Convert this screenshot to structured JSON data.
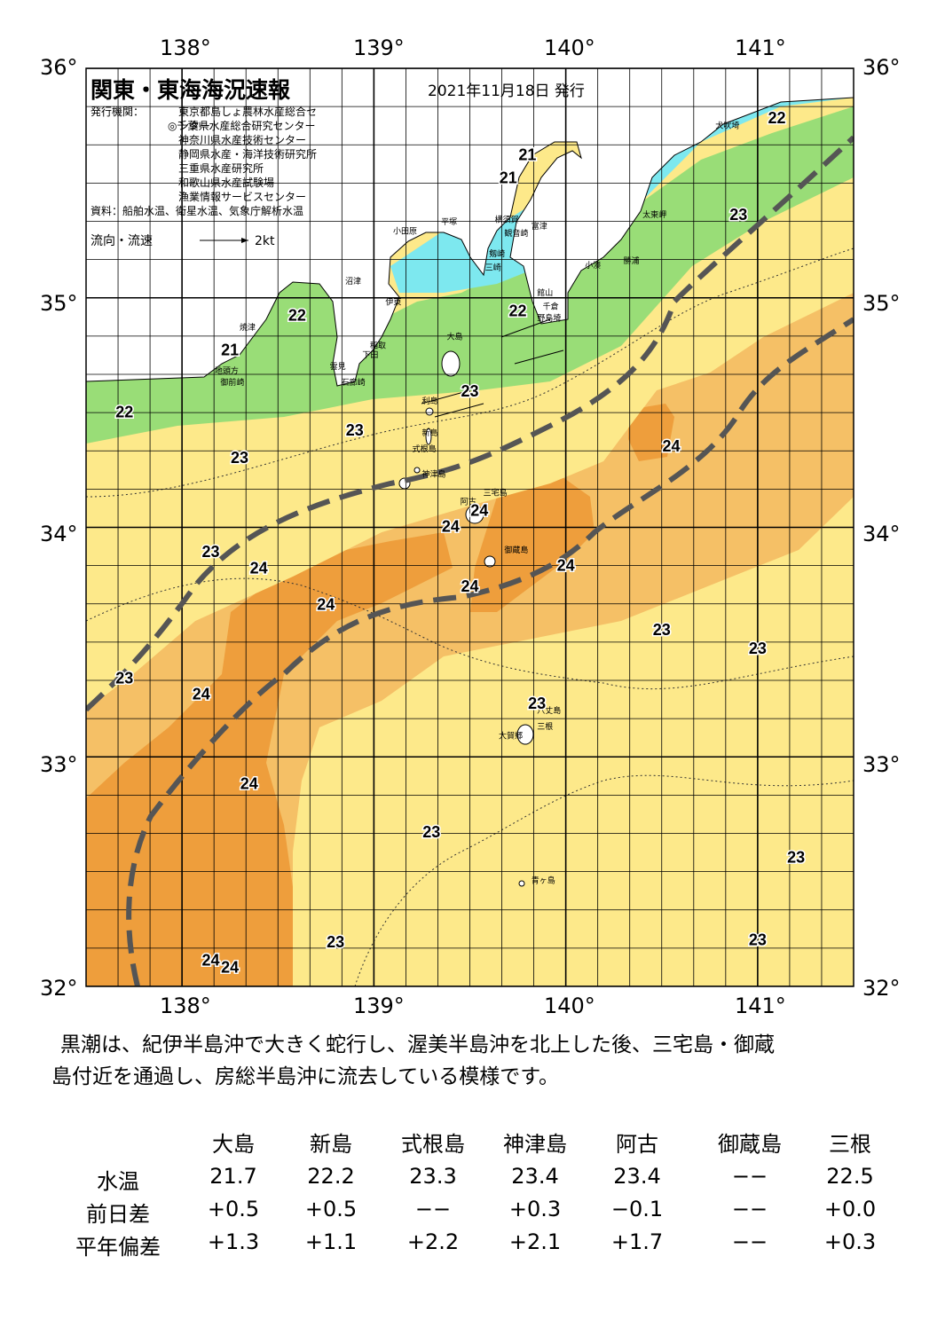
{
  "title": "関東・東海海況速報",
  "issue_date": "2021年11月18日 発行",
  "issuer_heading": "発行機関：",
  "issuers": [
    "東京都島しょ農林水産総合センター",
    "◎千葉県水産総合研究センター",
    "神奈川県水産技術センター",
    "静岡県水産・海洋技術研究所",
    "三重県水産研究所",
    "和歌山県水産試験場",
    "漁業情報サービスセンター"
  ],
  "source_note": "資料：船舶水温、衛星水温、気象庁解析水温",
  "flow_legend": {
    "label": "流向・流速",
    "scale": "2kt"
  },
  "axes": {
    "lon_labels": [
      "138°",
      "139°",
      "140°",
      "141°"
    ],
    "lat_labels": [
      "36°",
      "35°",
      "34°",
      "33°",
      "32°"
    ],
    "lon_range": [
      137.5,
      141.5
    ],
    "lat_range": [
      32,
      36
    ]
  },
  "temperature_labels": [
    {
      "text": "21",
      "lon": 139.8,
      "lat": 35.6
    },
    {
      "text": "21",
      "lon": 139.7,
      "lat": 35.5
    },
    {
      "text": "22",
      "lon": 141.1,
      "lat": 35.76
    },
    {
      "text": "23",
      "lon": 140.9,
      "lat": 35.34
    },
    {
      "text": "22",
      "lon": 138.6,
      "lat": 34.9
    },
    {
      "text": "21",
      "lon": 138.25,
      "lat": 34.75
    },
    {
      "text": "22",
      "lon": 139.75,
      "lat": 34.92
    },
    {
      "text": "23",
      "lon": 139.5,
      "lat": 34.57
    },
    {
      "text": "22",
      "lon": 137.7,
      "lat": 34.48
    },
    {
      "text": "23",
      "lon": 138.3,
      "lat": 34.28
    },
    {
      "text": "23",
      "lon": 138.9,
      "lat": 34.4
    },
    {
      "text": "24",
      "lon": 140.55,
      "lat": 34.33
    },
    {
      "text": "24",
      "lon": 139.55,
      "lat": 34.05
    },
    {
      "text": "24",
      "lon": 139.4,
      "lat": 33.98
    },
    {
      "text": "23",
      "lon": 138.15,
      "lat": 33.87
    },
    {
      "text": "24",
      "lon": 138.4,
      "lat": 33.8
    },
    {
      "text": "24",
      "lon": 140.0,
      "lat": 33.81
    },
    {
      "text": "24",
      "lon": 139.5,
      "lat": 33.72
    },
    {
      "text": "24",
      "lon": 138.75,
      "lat": 33.64
    },
    {
      "text": "23",
      "lon": 140.5,
      "lat": 33.53
    },
    {
      "text": "23",
      "lon": 141.0,
      "lat": 33.45
    },
    {
      "text": "23",
      "lon": 137.7,
      "lat": 33.32
    },
    {
      "text": "24",
      "lon": 138.1,
      "lat": 33.25
    },
    {
      "text": "23",
      "lon": 139.85,
      "lat": 33.21
    },
    {
      "text": "24",
      "lon": 138.35,
      "lat": 32.86
    },
    {
      "text": "23",
      "lon": 139.3,
      "lat": 32.65
    },
    {
      "text": "23",
      "lon": 141.2,
      "lat": 32.54
    },
    {
      "text": "23",
      "lon": 138.8,
      "lat": 32.17
    },
    {
      "text": "23",
      "lon": 141.0,
      "lat": 32.18
    },
    {
      "text": "24",
      "lon": 138.15,
      "lat": 32.09
    },
    {
      "text": "24",
      "lon": 138.25,
      "lat": 32.06
    }
  ],
  "place_labels": [
    {
      "text": "犬吠埼",
      "lon": 140.78,
      "lat": 35.74
    },
    {
      "text": "太東岬",
      "lon": 140.4,
      "lat": 35.35
    },
    {
      "text": "勝浦",
      "lon": 140.3,
      "lat": 35.15
    },
    {
      "text": "小湊",
      "lon": 140.1,
      "lat": 35.13
    },
    {
      "text": "富津",
      "lon": 139.82,
      "lat": 35.3
    },
    {
      "text": "館山",
      "lon": 139.85,
      "lat": 35.01
    },
    {
      "text": "千倉",
      "lon": 139.88,
      "lat": 34.95
    },
    {
      "text": "野島埼",
      "lon": 139.85,
      "lat": 34.9
    },
    {
      "text": "横須賀",
      "lon": 139.63,
      "lat": 35.33
    },
    {
      "text": "観音崎",
      "lon": 139.68,
      "lat": 35.27
    },
    {
      "text": "剱崎",
      "lon": 139.6,
      "lat": 35.18
    },
    {
      "text": "三崎",
      "lon": 139.58,
      "lat": 35.12
    },
    {
      "text": "平塚",
      "lon": 139.35,
      "lat": 35.32
    },
    {
      "text": "小田原",
      "lon": 139.1,
      "lat": 35.28
    },
    {
      "text": "伊東",
      "lon": 139.06,
      "lat": 34.97
    },
    {
      "text": "稲取",
      "lon": 138.98,
      "lat": 34.78
    },
    {
      "text": "下田",
      "lon": 138.94,
      "lat": 34.74
    },
    {
      "text": "石廊崎",
      "lon": 138.83,
      "lat": 34.62
    },
    {
      "text": "雲見",
      "lon": 138.77,
      "lat": 34.69
    },
    {
      "text": "沼津",
      "lon": 138.85,
      "lat": 35.06
    },
    {
      "text": "焼津",
      "lon": 138.3,
      "lat": 34.86
    },
    {
      "text": "地頭方",
      "lon": 138.17,
      "lat": 34.67
    },
    {
      "text": "御前崎",
      "lon": 138.2,
      "lat": 34.62
    },
    {
      "text": "大島",
      "lon": 139.38,
      "lat": 34.82
    },
    {
      "text": "利島",
      "lon": 139.25,
      "lat": 34.54
    },
    {
      "text": "新島",
      "lon": 139.25,
      "lat": 34.4
    },
    {
      "text": "式根島",
      "lon": 139.2,
      "lat": 34.33
    },
    {
      "text": "神津島",
      "lon": 139.25,
      "lat": 34.22
    },
    {
      "text": "三宅島",
      "lon": 139.57,
      "lat": 34.14
    },
    {
      "text": "阿古",
      "lon": 139.45,
      "lat": 34.1
    },
    {
      "text": "御蔵島",
      "lon": 139.68,
      "lat": 33.89
    },
    {
      "text": "八丈島",
      "lon": 139.85,
      "lat": 33.19
    },
    {
      "text": "三根",
      "lon": 139.85,
      "lat": 33.12
    },
    {
      "text": "大賀郷",
      "lon": 139.65,
      "lat": 33.08
    },
    {
      "text": "青ヶ島",
      "lon": 139.82,
      "lat": 32.45
    }
  ],
  "summary_lines": [
    "黒潮は、紀伊半島沖で大きく蛇行し、渥美半島沖を北上した後、三宅島・御蔵",
    "島付近を通過し、房総半島沖に流去している模様です。"
  ],
  "table": {
    "columns": [
      "大島",
      "新島",
      "式根島",
      "神津島",
      "阿古",
      "御蔵島",
      "三根"
    ],
    "rows": [
      {
        "label": "水温",
        "values": [
          "21.7",
          "22.2",
          "23.3",
          "23.4",
          "23.4",
          "−−",
          "22.5"
        ]
      },
      {
        "label": "前日差",
        "values": [
          "+0.5",
          "+0.5",
          "−−",
          "+0.3",
          "−0.1",
          "−−",
          "+0.0"
        ]
      },
      {
        "label": "平年偏差",
        "values": [
          "+1.3",
          "+1.1",
          "+2.2",
          "+2.1",
          "+1.7",
          "−−",
          "+0.3"
        ]
      }
    ]
  },
  "colors": {
    "land": "#ffffff",
    "t21": "#7de8ef",
    "t22": "#99dd77",
    "t23": "#fde98a",
    "t24": "#f5c066",
    "t25": "#ee9e3c",
    "kuroshio_axis": "#555555"
  }
}
